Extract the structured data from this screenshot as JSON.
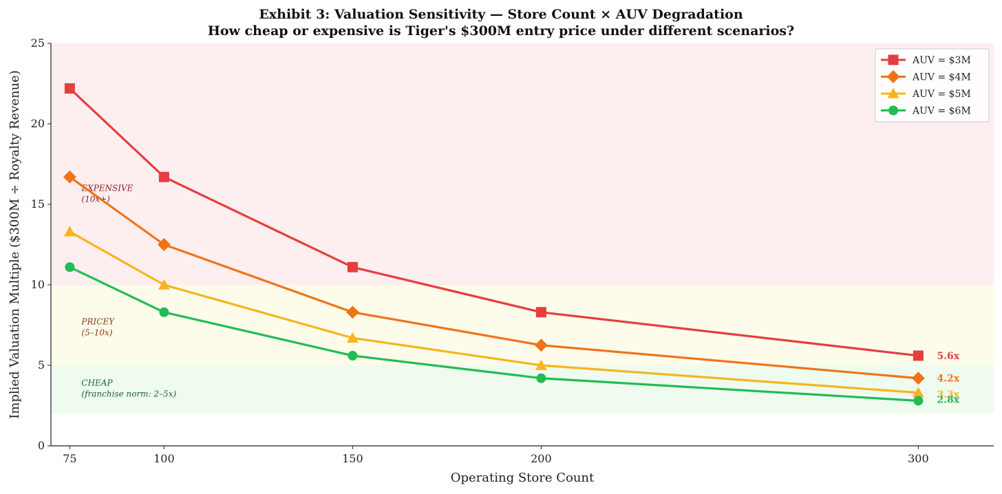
{
  "chart_data": {
    "type": "line",
    "title": "Exhibit 3: Valuation Sensitivity — Store Count × AUV Degradation",
    "subtitle": "How cheap or expensive is Tiger's $300M entry price under different scenarios?",
    "xlabel": "Operating Store Count",
    "ylabel": "Implied Valuation Multiple ($300M ÷ Royalty Revenue)",
    "x": [
      75,
      100,
      150,
      200,
      300
    ],
    "xlim": [
      70,
      320
    ],
    "ylim": [
      0,
      25
    ],
    "xticks": [
      "75",
      "100",
      "150",
      "200",
      "300"
    ],
    "yticks": [
      "0",
      "5",
      "10",
      "15",
      "20",
      "25"
    ],
    "legend_position": "top-right",
    "series": [
      {
        "name": "AUV = $3M",
        "color": "#e53e3e",
        "marker": "square",
        "values": [
          22.2,
          16.7,
          11.1,
          8.3,
          5.6
        ],
        "end_label": "5.6x"
      },
      {
        "name": "AUV = $4M",
        "color": "#f07318",
        "marker": "diamond",
        "values": [
          16.7,
          12.5,
          8.3,
          6.25,
          4.2
        ],
        "end_label": "4.2x"
      },
      {
        "name": "AUV = $5M",
        "color": "#f5b51f",
        "marker": "triangle",
        "values": [
          13.3,
          10.0,
          6.7,
          5.0,
          3.3
        ],
        "end_label": "3.3x"
      },
      {
        "name": "AUV = $6M",
        "color": "#22bb55",
        "marker": "circle",
        "values": [
          11.1,
          8.3,
          5.6,
          4.2,
          2.8
        ],
        "end_label": "2.8x"
      }
    ],
    "bands": [
      {
        "range": [
          10,
          25
        ],
        "color": "#fdeef0",
        "label_line1": "EXPENSIVE",
        "label_line2": "(10x+)",
        "label_color": "#8b2020"
      },
      {
        "range": [
          5,
          10
        ],
        "color": "#fdfbea",
        "label_line1": "PRICEY",
        "label_line2": "(5–10x)",
        "label_color": "#8a3b12"
      },
      {
        "range": [
          2,
          5
        ],
        "color": "#eefbee",
        "label_line1": "CHEAP",
        "label_line2": "(franchise norm: 2–5x)",
        "label_color": "#1e5e2e"
      }
    ]
  }
}
